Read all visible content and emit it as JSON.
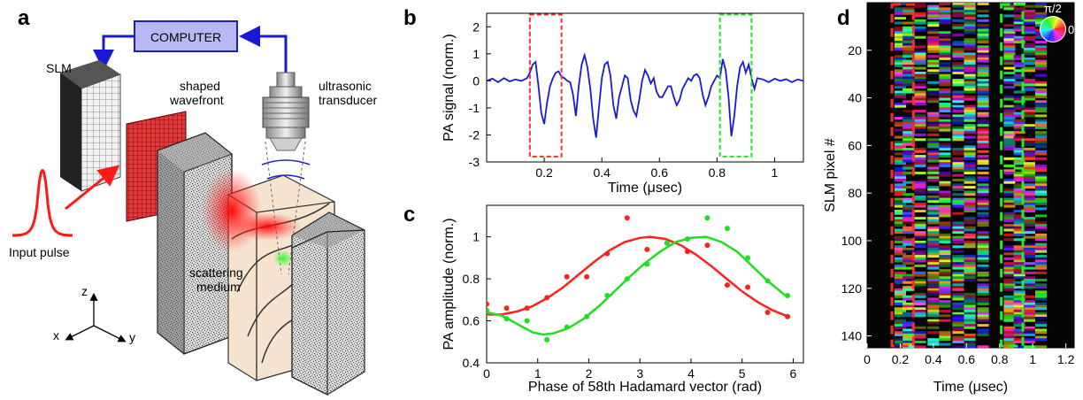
{
  "panel_labels": [
    "a",
    "b",
    "c",
    "d"
  ],
  "panel_a": {
    "computer_label": "COMPUTER",
    "slm_label": "SLM",
    "wavefront_label_1": "shaped",
    "wavefront_label_2": "wavefront",
    "transducer_label_1": "ultrasonic",
    "transducer_label_2": "transducer",
    "input_pulse_label": "Input pulse",
    "medium_label_1": "scattering",
    "medium_label_2": "medium",
    "axis_z": "z",
    "axis_x": "x",
    "axis_y": "y",
    "colors": {
      "computer_fill": "#b8b8f4",
      "computer_stroke": "#1e1eb4",
      "arrow_blue": "#1a1ad6",
      "pulse_red": "#ff1a1a",
      "medium_beige": "#f6e4d0"
    }
  },
  "chart_data": [
    {
      "panel": "b",
      "type": "line",
      "xlabel": "Time (μsec)",
      "ylabel": "PA signal (norm.)",
      "xlim": [
        0,
        1.1
      ],
      "ylim": [
        -3,
        2.5
      ],
      "xticks": [
        "0.2",
        "0.4",
        "0.6",
        "0.8",
        "1"
      ],
      "yticks": [
        "-3",
        "-2",
        "-1",
        "0",
        "1",
        "2"
      ],
      "series": [
        {
          "color": "#1a1ad6",
          "x": [
            0.0,
            0.02,
            0.04,
            0.06,
            0.08,
            0.1,
            0.12,
            0.14,
            0.15,
            0.16,
            0.17,
            0.18,
            0.19,
            0.2,
            0.21,
            0.22,
            0.23,
            0.24,
            0.25,
            0.26,
            0.27,
            0.28,
            0.29,
            0.3,
            0.31,
            0.32,
            0.33,
            0.34,
            0.35,
            0.36,
            0.37,
            0.38,
            0.39,
            0.4,
            0.41,
            0.42,
            0.43,
            0.44,
            0.45,
            0.46,
            0.47,
            0.48,
            0.49,
            0.5,
            0.51,
            0.52,
            0.53,
            0.54,
            0.55,
            0.56,
            0.57,
            0.58,
            0.59,
            0.6,
            0.61,
            0.62,
            0.63,
            0.64,
            0.65,
            0.66,
            0.67,
            0.68,
            0.69,
            0.7,
            0.71,
            0.72,
            0.73,
            0.74,
            0.75,
            0.76,
            0.77,
            0.78,
            0.79,
            0.8,
            0.81,
            0.82,
            0.83,
            0.84,
            0.85,
            0.86,
            0.87,
            0.88,
            0.89,
            0.9,
            0.91,
            0.92,
            0.93,
            0.94,
            0.96,
            0.98,
            1.0,
            1.02,
            1.04,
            1.06,
            1.08,
            1.1
          ],
          "y": [
            0.0,
            0.08,
            -0.05,
            0.1,
            -0.02,
            0.05,
            0.0,
            0.1,
            0.3,
            0.6,
            0.7,
            -0.2,
            -1.2,
            -1.6,
            -0.8,
            -0.2,
            0.1,
            0.3,
            0.35,
            0.15,
            0.1,
            0.0,
            -0.05,
            -0.5,
            -1.3,
            -0.2,
            0.6,
            0.95,
            0.5,
            -0.3,
            -1.4,
            -2.1,
            -1.0,
            0.1,
            0.6,
            0.7,
            0.2,
            -0.9,
            -1.4,
            -0.6,
            -0.2,
            0.2,
            0.1,
            -0.7,
            -1.1,
            -1.3,
            -0.7,
            0.0,
            0.4,
            0.2,
            -0.1,
            0.1,
            -0.4,
            -0.6,
            -0.6,
            -0.4,
            -0.2,
            -0.2,
            -0.6,
            -0.9,
            -0.7,
            -0.3,
            -0.1,
            0.1,
            0.0,
            0.2,
            0.25,
            0.1,
            -0.5,
            -0.9,
            -0.6,
            -0.2,
            0.0,
            0.2,
            0.1,
            0.8,
            0.4,
            -0.6,
            -2.05,
            -1.3,
            -0.2,
            0.5,
            0.7,
            0.3,
            0.6,
            0.1,
            -0.3,
            0.1,
            0.05,
            -0.05,
            0.08,
            0.0,
            0.06,
            -0.05,
            0.05,
            0.0
          ]
        }
      ],
      "boxes": [
        {
          "x": [
            0.15,
            0.26
          ],
          "y": [
            -2.8,
            2.45
          ],
          "color": "#ff2a2a"
        },
        {
          "x": [
            0.81,
            0.92
          ],
          "y": [
            -2.8,
            2.45
          ],
          "color": "#22e022"
        }
      ]
    },
    {
      "panel": "c",
      "type": "scatter",
      "xlabel": "Phase of 58th Hadamard vector (rad)",
      "ylabel": "PA amplitude (norm.)",
      "xlim": [
        0,
        6.2
      ],
      "ylim": [
        0.4,
        1.15
      ],
      "xticks": [
        "0",
        "1",
        "2",
        "3",
        "4",
        "5",
        "6"
      ],
      "yticks": [
        "0.4",
        "0.6",
        "0.8",
        "1"
      ],
      "series": [
        {
          "color": "#ff2020",
          "points_x": [
            0.0,
            0.39,
            0.79,
            1.18,
            1.57,
            1.96,
            2.36,
            2.75,
            3.14,
            3.53,
            3.93,
            4.32,
            4.71,
            5.11,
            5.5,
            5.89
          ],
          "points_y": [
            0.68,
            0.66,
            0.66,
            0.71,
            0.81,
            0.81,
            0.92,
            1.09,
            0.94,
            0.97,
            0.93,
            0.96,
            0.77,
            0.76,
            0.64,
            0.62
          ],
          "fit_x": [
            0.0,
            0.3,
            0.6,
            0.9,
            1.2,
            1.5,
            1.8,
            2.1,
            2.4,
            2.7,
            3.0,
            3.2,
            3.5,
            3.8,
            4.1,
            4.4,
            4.7,
            5.0,
            5.3,
            5.6,
            5.9
          ],
          "fit_y": [
            0.63,
            0.63,
            0.645,
            0.67,
            0.71,
            0.76,
            0.82,
            0.88,
            0.935,
            0.975,
            0.995,
            1.0,
            0.99,
            0.96,
            0.915,
            0.86,
            0.8,
            0.74,
            0.69,
            0.65,
            0.62
          ]
        },
        {
          "color": "#22dd22",
          "points_x": [
            0.0,
            0.39,
            0.79,
            1.18,
            1.57,
            1.96,
            2.36,
            2.75,
            3.14,
            3.53,
            3.93,
            4.32,
            4.71,
            5.11,
            5.5,
            5.89
          ],
          "points_y": [
            0.65,
            0.61,
            0.6,
            0.51,
            0.57,
            0.62,
            0.72,
            0.8,
            0.87,
            0.97,
            0.99,
            1.09,
            1.04,
            0.9,
            0.79,
            0.72
          ],
          "fit_x": [
            0.0,
            0.3,
            0.6,
            0.9,
            1.1,
            1.3,
            1.6,
            1.9,
            2.2,
            2.5,
            2.8,
            3.1,
            3.4,
            3.7,
            4.0,
            4.3,
            4.6,
            4.9,
            5.2,
            5.5,
            5.9
          ],
          "fit_y": [
            0.64,
            0.625,
            0.585,
            0.545,
            0.535,
            0.54,
            0.565,
            0.61,
            0.67,
            0.74,
            0.81,
            0.875,
            0.93,
            0.975,
            0.995,
            1.0,
            0.975,
            0.93,
            0.86,
            0.79,
            0.71
          ]
        }
      ]
    },
    {
      "panel": "d",
      "type": "heatmap",
      "xlabel": "Time (μsec)",
      "ylabel": "SLM pixel #",
      "xlim": [
        0,
        1.25
      ],
      "ylim": [
        145,
        0
      ],
      "xticks": [
        "0",
        "0.2",
        "0.4",
        "0.6",
        "0.8",
        "1",
        "1.2"
      ],
      "yticks": [
        "20",
        "40",
        "60",
        "80",
        "100",
        "120",
        "140"
      ],
      "colorwheel_labels": [
        "π/2",
        "0"
      ],
      "time_bands": [
        0.2,
        0.25,
        0.32,
        0.4,
        0.47,
        0.55,
        0.62,
        0.7,
        0.86,
        0.92,
        0.98,
        1.05
      ],
      "boxes": [
        {
          "x": [
            0.15,
            0.28
          ],
          "color": "#ff2a2a"
        },
        {
          "x": [
            0.81,
            0.94
          ],
          "color": "#22ee22"
        }
      ]
    }
  ]
}
